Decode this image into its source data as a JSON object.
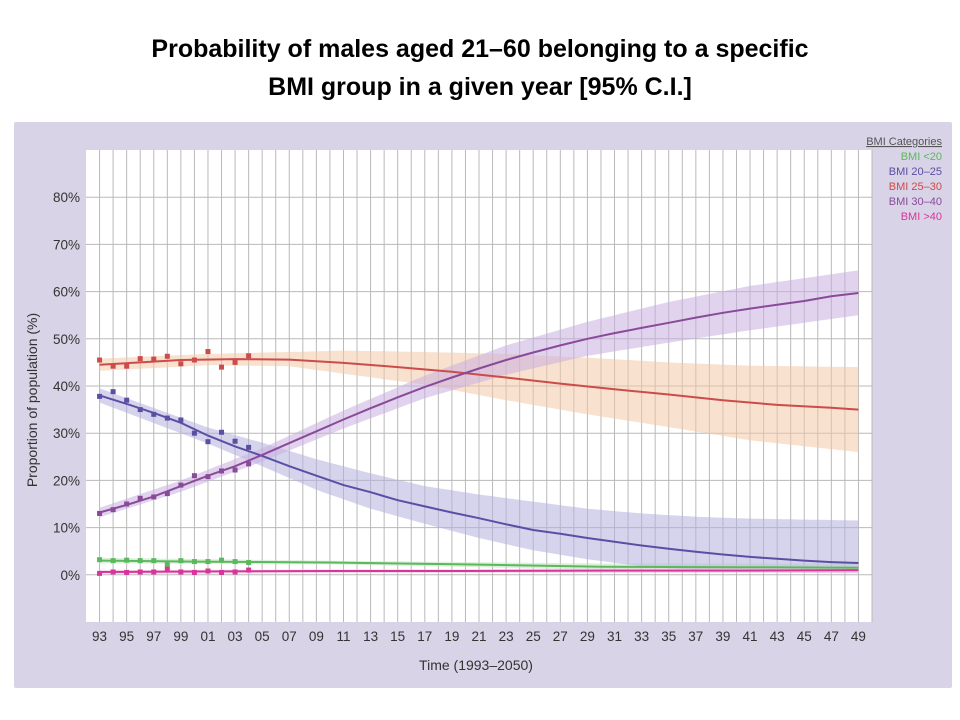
{
  "title": {
    "line1": "Probability of males aged 21–60 belonging to a specific",
    "line2": "BMI group in a given year [95% C.I.]"
  },
  "colors": {
    "panel_bg": "#d8d3e6",
    "plot_bg": "#ffffff",
    "grid": "#b9b9b9",
    "bmi_lt20": "#5cb85c",
    "bmi_20_25": "#5a4fa3",
    "bmi_25_30": "#cc4b4b",
    "bmi_30_40": "#8a4a9a",
    "bmi_gt40": "#d8359b"
  },
  "chart_data": {
    "type": "line",
    "title": "",
    "xlabel": "Time (1993–2050)",
    "ylabel": "Proportion of population (%)",
    "x_tick_labels": [
      "93",
      "95",
      "97",
      "99",
      "01",
      "03",
      "05",
      "07",
      "09",
      "11",
      "13",
      "15",
      "17",
      "19",
      "21",
      "23",
      "25",
      "27",
      "29",
      "31",
      "33",
      "35",
      "37",
      "39",
      "41",
      "43",
      "45",
      "47",
      "49"
    ],
    "y_tick_labels": [
      "0%",
      "10%",
      "20%",
      "30%",
      "40%",
      "50%",
      "60%",
      "70%",
      "80%"
    ],
    "xlim": [
      1992,
      2050
    ],
    "ylim": [
      -10,
      90
    ],
    "grid": true,
    "legend": {
      "title": "BMI Categories",
      "position": "top-right",
      "entries": [
        "BMI <20",
        "BMI 20–25",
        "BMI 25–30",
        "BMI 30–40",
        "BMI >40"
      ]
    },
    "series": [
      {
        "name": "BMI <20",
        "color_key": "bmi_lt20",
        "fit": [
          [
            1993,
            3.0
          ],
          [
            2000,
            2.8
          ],
          [
            2010,
            2.6
          ],
          [
            2020,
            2.2
          ],
          [
            2030,
            1.7
          ],
          [
            2040,
            1.6
          ],
          [
            2049,
            1.5
          ]
        ],
        "ci_upper": [
          [
            1993,
            3.6
          ],
          [
            2010,
            3.0
          ],
          [
            2030,
            2.4
          ],
          [
            2049,
            2.4
          ]
        ],
        "ci_lower": [
          [
            1993,
            2.4
          ],
          [
            2010,
            2.2
          ],
          [
            2030,
            1.1
          ],
          [
            2049,
            0.7
          ]
        ],
        "observed": [
          [
            1993,
            3.2
          ],
          [
            1994,
            3.0
          ],
          [
            1995,
            3.1
          ],
          [
            1996,
            3.0
          ],
          [
            1997,
            3.0
          ],
          [
            1998,
            2.2
          ],
          [
            1999,
            3.0
          ],
          [
            2000,
            2.8
          ],
          [
            2001,
            2.8
          ],
          [
            2002,
            3.1
          ],
          [
            2003,
            2.8
          ],
          [
            2004,
            2.6
          ]
        ]
      },
      {
        "name": "BMI 20–25",
        "color_key": "bmi_20_25",
        "fit": [
          [
            1993,
            38.0
          ],
          [
            1995,
            36.2
          ],
          [
            1997,
            34.3
          ],
          [
            1999,
            32.2
          ],
          [
            2001,
            29.5
          ],
          [
            2003,
            27.2
          ],
          [
            2005,
            25.2
          ],
          [
            2007,
            23.0
          ],
          [
            2009,
            21.0
          ],
          [
            2011,
            19.0
          ],
          [
            2013,
            17.5
          ],
          [
            2015,
            15.8
          ],
          [
            2017,
            14.5
          ],
          [
            2019,
            13.2
          ],
          [
            2021,
            12.0
          ],
          [
            2023,
            10.7
          ],
          [
            2025,
            9.5
          ],
          [
            2027,
            8.7
          ],
          [
            2029,
            7.8
          ],
          [
            2031,
            7.0
          ],
          [
            2033,
            6.2
          ],
          [
            2035,
            5.5
          ],
          [
            2037,
            4.9
          ],
          [
            2039,
            4.3
          ],
          [
            2041,
            3.8
          ],
          [
            2043,
            3.4
          ],
          [
            2045,
            3.0
          ],
          [
            2047,
            2.7
          ],
          [
            2049,
            2.5
          ]
        ],
        "ci_upper": [
          [
            1993,
            39.5
          ],
          [
            2001,
            31.2
          ],
          [
            2005,
            28.0
          ],
          [
            2009,
            24.5
          ],
          [
            2013,
            21.5
          ],
          [
            2017,
            18.8
          ],
          [
            2021,
            17.0
          ],
          [
            2025,
            15.5
          ],
          [
            2029,
            14.0
          ],
          [
            2033,
            13.0
          ],
          [
            2037,
            12.3
          ],
          [
            2041,
            11.9
          ],
          [
            2045,
            11.7
          ],
          [
            2049,
            11.5
          ]
        ],
        "ci_lower": [
          [
            1993,
            36.5
          ],
          [
            2001,
            27.8
          ],
          [
            2005,
            23.0
          ],
          [
            2009,
            18.0
          ],
          [
            2013,
            14.0
          ],
          [
            2017,
            10.8
          ],
          [
            2021,
            7.8
          ],
          [
            2025,
            5.2
          ],
          [
            2029,
            3.3
          ],
          [
            2033,
            1.8
          ],
          [
            2037,
            1.0
          ],
          [
            2041,
            0.6
          ],
          [
            2045,
            0.4
          ],
          [
            2049,
            0.3
          ]
        ],
        "observed": [
          [
            1993,
            37.8
          ],
          [
            1994,
            38.8
          ],
          [
            1995,
            37.0
          ],
          [
            1996,
            35.0
          ],
          [
            1997,
            34.0
          ],
          [
            1998,
            33.2
          ],
          [
            1999,
            32.8
          ],
          [
            2000,
            30.0
          ],
          [
            2001,
            28.2
          ],
          [
            2002,
            30.2
          ],
          [
            2003,
            28.3
          ],
          [
            2004,
            27.0
          ]
        ]
      },
      {
        "name": "BMI 25–30",
        "color_key": "bmi_25_30",
        "fit": [
          [
            1993,
            44.5
          ],
          [
            1996,
            45.0
          ],
          [
            1999,
            45.5
          ],
          [
            2003,
            45.7
          ],
          [
            2007,
            45.6
          ],
          [
            2011,
            44.9
          ],
          [
            2015,
            44.0
          ],
          [
            2019,
            43.0
          ],
          [
            2023,
            41.8
          ],
          [
            2027,
            40.5
          ],
          [
            2031,
            39.3
          ],
          [
            2035,
            38.2
          ],
          [
            2039,
            37.0
          ],
          [
            2043,
            36.0
          ],
          [
            2047,
            35.4
          ],
          [
            2049,
            35.0
          ]
        ],
        "ci_upper": [
          [
            1993,
            45.8
          ],
          [
            2001,
            46.8
          ],
          [
            2007,
            47.2
          ],
          [
            2011,
            47.5
          ],
          [
            2017,
            47.2
          ],
          [
            2023,
            46.8
          ],
          [
            2029,
            46.0
          ],
          [
            2035,
            45.0
          ],
          [
            2041,
            44.3
          ],
          [
            2049,
            44.0
          ]
        ],
        "ci_lower": [
          [
            1993,
            43.2
          ],
          [
            2001,
            44.4
          ],
          [
            2007,
            44.2
          ],
          [
            2011,
            42.6
          ],
          [
            2017,
            40.3
          ],
          [
            2023,
            37.0
          ],
          [
            2029,
            34.0
          ],
          [
            2035,
            31.3
          ],
          [
            2041,
            28.5
          ],
          [
            2049,
            26.0
          ]
        ],
        "observed": [
          [
            1993,
            45.5
          ],
          [
            1994,
            44.2
          ],
          [
            1995,
            44.2
          ],
          [
            1996,
            45.8
          ],
          [
            1997,
            45.7
          ],
          [
            1998,
            46.3
          ],
          [
            1999,
            44.7
          ],
          [
            2000,
            45.5
          ],
          [
            2001,
            47.3
          ],
          [
            2002,
            44.0
          ],
          [
            2003,
            45.0
          ],
          [
            2004,
            46.4
          ]
        ]
      },
      {
        "name": "BMI 30–40",
        "color_key": "bmi_30_40",
        "fit": [
          [
            1993,
            13.2
          ],
          [
            1995,
            14.8
          ],
          [
            1997,
            16.6
          ],
          [
            1999,
            18.8
          ],
          [
            2001,
            21.0
          ],
          [
            2003,
            23.0
          ],
          [
            2005,
            25.4
          ],
          [
            2007,
            27.9
          ],
          [
            2009,
            30.4
          ],
          [
            2011,
            32.9
          ],
          [
            2013,
            35.3
          ],
          [
            2015,
            37.6
          ],
          [
            2017,
            39.8
          ],
          [
            2019,
            41.8
          ],
          [
            2021,
            43.7
          ],
          [
            2023,
            45.5
          ],
          [
            2025,
            47.1
          ],
          [
            2027,
            48.6
          ],
          [
            2029,
            50.0
          ],
          [
            2031,
            51.2
          ],
          [
            2033,
            52.3
          ],
          [
            2035,
            53.4
          ],
          [
            2037,
            54.5
          ],
          [
            2039,
            55.5
          ],
          [
            2041,
            56.4
          ],
          [
            2043,
            57.2
          ],
          [
            2045,
            58.0
          ],
          [
            2047,
            59.0
          ],
          [
            2049,
            59.7
          ]
        ],
        "ci_upper": [
          [
            1993,
            14.2
          ],
          [
            1999,
            20.0
          ],
          [
            2005,
            26.8
          ],
          [
            2011,
            34.8
          ],
          [
            2017,
            42.2
          ],
          [
            2023,
            48.6
          ],
          [
            2029,
            53.6
          ],
          [
            2035,
            57.8
          ],
          [
            2041,
            61.2
          ],
          [
            2049,
            64.5
          ]
        ],
        "ci_lower": [
          [
            1993,
            12.2
          ],
          [
            1999,
            17.6
          ],
          [
            2005,
            24.0
          ],
          [
            2011,
            31.0
          ],
          [
            2017,
            37.4
          ],
          [
            2023,
            42.4
          ],
          [
            2029,
            46.4
          ],
          [
            2035,
            49.2
          ],
          [
            2041,
            51.8
          ],
          [
            2049,
            55.0
          ]
        ],
        "observed": [
          [
            1993,
            13.0
          ],
          [
            1994,
            13.8
          ],
          [
            1995,
            15.0
          ],
          [
            1996,
            16.2
          ],
          [
            1997,
            16.5
          ],
          [
            1998,
            17.2
          ],
          [
            1999,
            19.0
          ],
          [
            2000,
            21.0
          ],
          [
            2001,
            20.8
          ],
          [
            2002,
            22.0
          ],
          [
            2003,
            22.2
          ],
          [
            2004,
            23.5
          ]
        ]
      },
      {
        "name": "BMI >40",
        "color_key": "bmi_gt40",
        "fit": [
          [
            1993,
            0.6
          ],
          [
            2000,
            0.7
          ],
          [
            2010,
            0.8
          ],
          [
            2020,
            0.8
          ],
          [
            2030,
            0.9
          ],
          [
            2040,
            0.9
          ],
          [
            2049,
            1.0
          ]
        ],
        "ci_upper": [
          [
            1993,
            1.0
          ],
          [
            2020,
            1.2
          ],
          [
            2049,
            1.6
          ]
        ],
        "ci_lower": [
          [
            1993,
            0.2
          ],
          [
            2020,
            0.4
          ],
          [
            2049,
            0.4
          ]
        ],
        "observed": [
          [
            1993,
            0.3
          ],
          [
            1994,
            0.6
          ],
          [
            1995,
            0.5
          ],
          [
            1996,
            0.6
          ],
          [
            1997,
            0.6
          ],
          [
            1998,
            1.2
          ],
          [
            1999,
            0.6
          ],
          [
            2000,
            0.5
          ],
          [
            2001,
            0.8
          ],
          [
            2002,
            0.5
          ],
          [
            2003,
            0.6
          ],
          [
            2004,
            1.0
          ]
        ]
      }
    ]
  }
}
